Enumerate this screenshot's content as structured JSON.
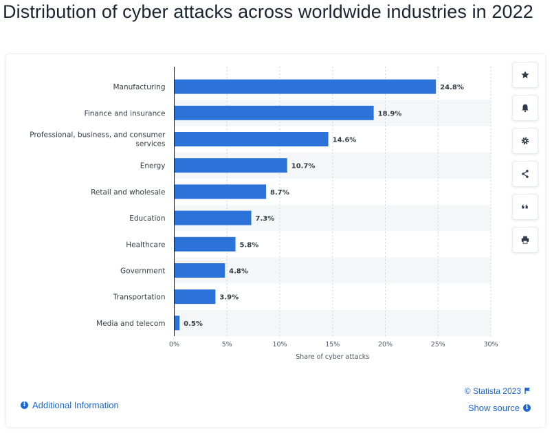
{
  "title": "Distribution of cyber attacks across worldwide industries in 2022",
  "colors": {
    "bar": "#2b73d9",
    "band": "#f5f6f7",
    "grid": "#cfd3d8",
    "axis": "#1b2431",
    "link": "#1a67d2"
  },
  "sidebar": {
    "buttons": [
      {
        "name": "favorite-button",
        "icon": "star-icon"
      },
      {
        "name": "notification-button",
        "icon": "bell-icon"
      },
      {
        "name": "settings-button",
        "icon": "gear-icon"
      },
      {
        "name": "share-button",
        "icon": "share-icon"
      },
      {
        "name": "cite-button",
        "icon": "quote-icon"
      },
      {
        "name": "print-button",
        "icon": "printer-icon"
      }
    ]
  },
  "footer": {
    "additional_info": "Additional Information",
    "copyright": "© Statista 2023",
    "show_source": "Show source"
  },
  "chart_data": {
    "type": "bar",
    "orientation": "horizontal",
    "categories": [
      "Manufacturing",
      "Finance and insurance",
      "Professional, business, and consumer services",
      "Energy",
      "Retail and wholesale",
      "Education",
      "Healthcare",
      "Government",
      "Transportation",
      "Media and telecom"
    ],
    "values": [
      24.8,
      18.9,
      14.6,
      10.7,
      8.7,
      7.3,
      5.8,
      4.8,
      3.9,
      0.5
    ],
    "data_labels": [
      "24.8%",
      "18.9%",
      "14.6%",
      "10.7%",
      "8.7%",
      "7.3%",
      "5.8%",
      "4.8%",
      "3.9%",
      "0.5%"
    ],
    "xlabel": "Share of cyber attacks",
    "ylabel": "",
    "xlim": [
      0,
      30
    ],
    "xticks": [
      "0%",
      "5%",
      "10%",
      "15%",
      "20%",
      "25%",
      "30%"
    ],
    "grid": true,
    "legend": "none"
  }
}
